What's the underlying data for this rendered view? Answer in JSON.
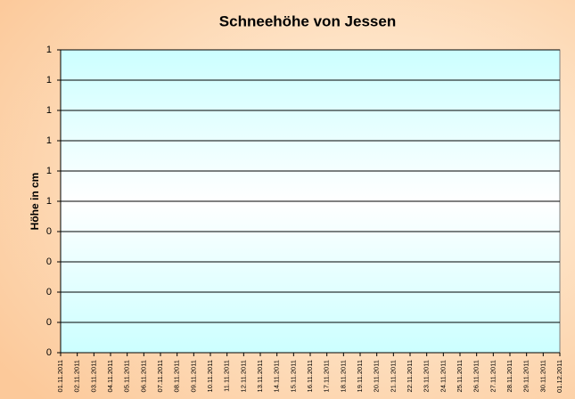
{
  "chart_data": {
    "type": "line",
    "title": "Schneehöhe von Jessen",
    "y_label": "Höhe in cm",
    "categories": [
      "01.11.2011",
      "02.11.2011",
      "03.11.2011",
      "04.11.2011",
      "05.11.2011",
      "06.11.2011",
      "07.11.2011",
      "08.11.2011",
      "09.11.2011",
      "10.11.2011",
      "11.11.2011",
      "12.11.2011",
      "13.11.2011",
      "14.11.2011",
      "15.11.2011",
      "16.11.2011",
      "17.11.2011",
      "18.11.2011",
      "19.11.2011",
      "20.11.2011",
      "21.11.2011",
      "22.11.2011",
      "23.11.2011",
      "24.11.2011",
      "25.11.2011",
      "26.11.2011",
      "27.11.2011",
      "28.11.2011",
      "29.11.2011",
      "30.11.2011",
      "01.12.2011"
    ],
    "ylim": [
      0,
      1
    ],
    "yticks": [
      0,
      {
        "value": 0.1,
        "label": "0"
      },
      {
        "value": 0.2,
        "label": "0"
      },
      {
        "value": 0.3,
        "label": "0"
      },
      {
        "value": 0.4,
        "label": "0"
      },
      {
        "value": 0.5,
        "label": "1"
      },
      {
        "value": 0.6,
        "label": "1"
      },
      {
        "value": 0.7,
        "label": "1"
      },
      {
        "value": 0.8,
        "label": "1"
      },
      {
        "value": 0.9,
        "label": "1"
      },
      1
    ],
    "grid": true
  }
}
